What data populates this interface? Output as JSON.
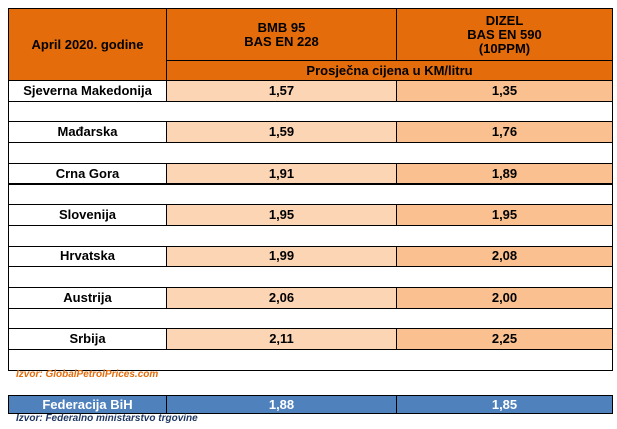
{
  "header": {
    "period": "April 2020. godine",
    "columns": [
      {
        "lines": [
          "BMB 95",
          "BAS EN 228"
        ]
      },
      {
        "lines": [
          "DIZEL",
          "BAS EN 590",
          "(10PPM)"
        ]
      }
    ],
    "unit": "Prosječna cijena u KM/litru"
  },
  "table": {
    "rows": [
      [
        "Sjeverna Makedonija",
        "1,57",
        "1,35"
      ],
      [
        "Mađarska",
        "1,59",
        "1,76"
      ],
      [
        "Crna Gora",
        "1,91",
        "1,89"
      ],
      [
        "Slovenija",
        "1,95",
        "1,95"
      ],
      [
        "Hrvatska",
        "1,99",
        "2,08"
      ],
      [
        "Austrija",
        "2,06",
        "2,00"
      ],
      [
        "Srbija",
        "2,11",
        "2,25"
      ]
    ]
  },
  "source": "Izvor: GlobalPetrolPrices.com",
  "bih": {
    "row": [
      "Federacija BiH",
      "1,88",
      "1,85"
    ],
    "source": "Izvor: Federalno ministarstvo trgovine"
  }
}
